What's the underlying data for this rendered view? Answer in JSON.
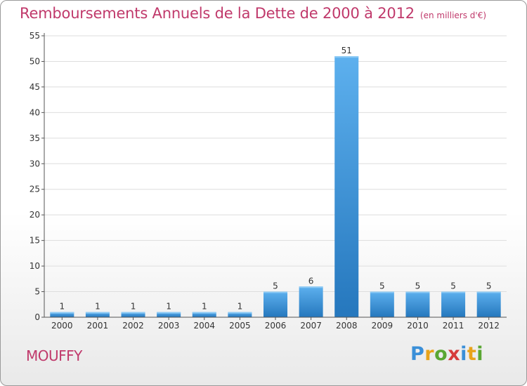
{
  "header": {
    "title": "Remboursements Annuels de la Dette de 2000 à 2012",
    "unit": "(en milliers d'€)"
  },
  "footer": {
    "commune": "MOUFFY",
    "logo_letters": [
      "P",
      "r",
      "o",
      "x",
      "i",
      "t",
      "i"
    ],
    "logo_colors": [
      "#3a8fd8",
      "#e8a31a",
      "#5aa733",
      "#d63b3b",
      "#3a8fd8",
      "#e8a31a",
      "#5aa733"
    ]
  },
  "colors": {
    "title": "#c0396b",
    "bar_top": "#5db0ee",
    "bar_bottom": "#2577bd",
    "grid": "#dddddd",
    "axis": "#555555"
  },
  "chart_data": {
    "type": "bar",
    "categories": [
      "2000",
      "2001",
      "2002",
      "2003",
      "2004",
      "2005",
      "2006",
      "2007",
      "2008",
      "2009",
      "2010",
      "2011",
      "2012"
    ],
    "values": [
      1,
      1,
      1,
      1,
      1,
      1,
      5,
      6,
      51,
      5,
      5,
      5,
      5
    ],
    "data_labels": [
      "1",
      "1",
      "1",
      "1",
      "1",
      "1",
      "5",
      "6",
      "51",
      "5",
      "5",
      "5",
      "5"
    ],
    "yticks": [
      0,
      5,
      10,
      15,
      20,
      25,
      30,
      35,
      40,
      45,
      50,
      55
    ],
    "ylim": [
      0,
      55
    ],
    "grid": true
  }
}
